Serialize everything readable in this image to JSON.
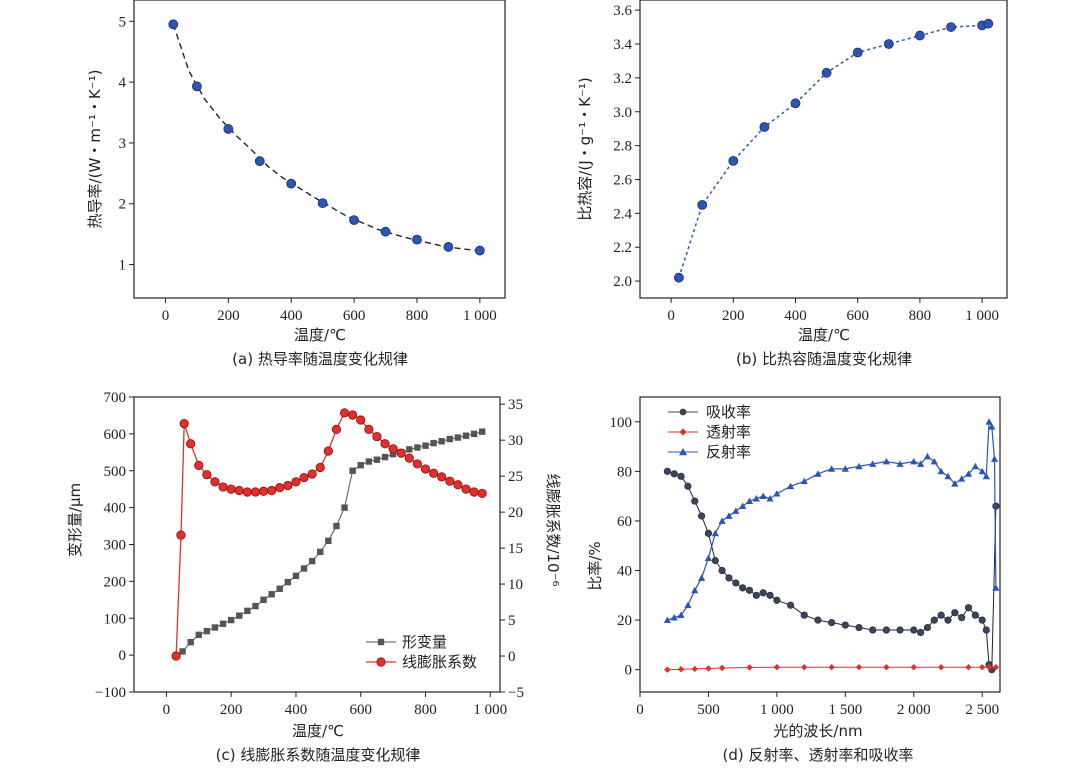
{
  "colors": {
    "blue": "#2d55b4",
    "red": "#e0302e",
    "gray": "#555555",
    "black": "#222222"
  },
  "chart_data": [
    {
      "id": "a",
      "type": "scatter",
      "caption": "(a) 热导率随温度变化规律",
      "xlabel": "温度/℃",
      "ylabel": "热导率/(W・m⁻¹・K⁻¹)",
      "xlim": [
        -100,
        1080
      ],
      "ylim": [
        0.45,
        5.35
      ],
      "xticks": [
        0,
        200,
        400,
        600,
        800,
        1000
      ],
      "xtick_labels": [
        "0",
        "200",
        "400",
        "600",
        "800",
        "1 000"
      ],
      "yticks": [
        1,
        2,
        3,
        4,
        5
      ],
      "ytick_labels": [
        "1",
        "2",
        "3",
        "4",
        "5"
      ],
      "series": [
        {
          "name": "热导率",
          "x": [
            25,
            100,
            200,
            300,
            400,
            500,
            600,
            700,
            800,
            900,
            1000
          ],
          "y": [
            4.95,
            3.93,
            3.23,
            2.7,
            2.33,
            2.01,
            1.73,
            1.54,
            1.41,
            1.29,
            1.23
          ]
        }
      ],
      "fit": {
        "style": "dashed",
        "x": [
          25,
          75,
          125,
          175,
          225,
          275,
          325,
          375,
          425,
          475,
          525,
          575,
          625,
          675,
          725,
          775,
          825,
          875,
          925,
          975,
          1000
        ],
        "y": [
          4.95,
          4.18,
          3.72,
          3.39,
          3.12,
          2.88,
          2.62,
          2.42,
          2.26,
          2.1,
          1.95,
          1.8,
          1.69,
          1.58,
          1.5,
          1.43,
          1.37,
          1.31,
          1.27,
          1.24,
          1.23
        ]
      }
    },
    {
      "id": "b",
      "type": "line",
      "caption": "(b) 比热容随温度变化规律",
      "xlabel": "温度/℃",
      "ylabel": "比热容/(J・g⁻¹・K⁻¹)",
      "xlim": [
        -100,
        1080
      ],
      "ylim": [
        1.9,
        3.66
      ],
      "xticks": [
        0,
        200,
        400,
        600,
        800,
        1000
      ],
      "xtick_labels": [
        "0",
        "200",
        "400",
        "600",
        "800",
        "1 000"
      ],
      "yticks": [
        2.0,
        2.2,
        2.4,
        2.6,
        2.8,
        3.0,
        3.2,
        3.4,
        3.6
      ],
      "ytick_labels": [
        "2.0",
        "2.2",
        "2.4",
        "2.6",
        "2.8",
        "3.0",
        "3.2",
        "3.4",
        "3.6"
      ],
      "series": [
        {
          "name": "比热容",
          "x": [
            25,
            100,
            200,
            300,
            400,
            500,
            600,
            700,
            800,
            900,
            1000,
            1020
          ],
          "y": [
            2.02,
            2.45,
            2.71,
            2.91,
            3.05,
            3.23,
            3.35,
            3.4,
            3.45,
            3.5,
            3.51,
            3.52
          ]
        }
      ]
    },
    {
      "id": "c",
      "type": "line",
      "caption": "(c) 线膨胀系数随温度变化规律",
      "xlabel": "温度/℃",
      "ylabel": "变形量/μm",
      "ylabel_right": "线膨胀系数/10⁻⁶",
      "xlim": [
        -100,
        1030
      ],
      "ylim": [
        -100,
        700
      ],
      "ylim_right": [
        -5,
        36
      ],
      "xticks": [
        0,
        200,
        400,
        600,
        800,
        1000
      ],
      "xtick_labels": [
        "0",
        "200",
        "400",
        "600",
        "800",
        "1 000"
      ],
      "yticks": [
        -100,
        0,
        100,
        200,
        300,
        400,
        500,
        600,
        700
      ],
      "ytick_labels": [
        "−100",
        "0",
        "100",
        "200",
        "300",
        "400",
        "500",
        "600",
        "700"
      ],
      "yticks_right": [
        -5,
        0,
        5,
        10,
        15,
        20,
        25,
        30,
        35
      ],
      "ytick_labels_right": [
        "−5",
        "0",
        "5",
        "10",
        "15",
        "20",
        "25",
        "30",
        "35"
      ],
      "legend": [
        "形变量",
        "线膨胀系数"
      ],
      "series": [
        {
          "name": "形变量",
          "axis": "left",
          "x": [
            50,
            75,
            100,
            125,
            150,
            175,
            200,
            225,
            250,
            275,
            300,
            325,
            350,
            375,
            400,
            425,
            450,
            475,
            500,
            525,
            550,
            575,
            600,
            625,
            650,
            675,
            700,
            725,
            750,
            775,
            800,
            825,
            850,
            875,
            900,
            925,
            950,
            975
          ],
          "y": [
            10,
            35,
            55,
            65,
            75,
            85,
            95,
            107,
            120,
            133,
            150,
            165,
            180,
            198,
            215,
            235,
            255,
            280,
            310,
            350,
            400,
            500,
            515,
            525,
            530,
            537,
            545,
            550,
            558,
            563,
            568,
            575,
            580,
            586,
            590,
            595,
            600,
            606
          ]
        },
        {
          "name": "线膨胀系数",
          "axis": "right",
          "x": [
            30,
            45,
            55,
            75,
            100,
            125,
            150,
            175,
            200,
            225,
            250,
            275,
            300,
            325,
            350,
            375,
            400,
            425,
            450,
            475,
            500,
            525,
            550,
            575,
            600,
            625,
            650,
            675,
            700,
            725,
            750,
            775,
            800,
            825,
            850,
            875,
            900,
            925,
            950,
            975
          ],
          "y": [
            0,
            16.8,
            32.3,
            29.5,
            26.5,
            25.2,
            24.2,
            23.5,
            23.2,
            23.0,
            22.8,
            22.8,
            22.9,
            23.0,
            23.4,
            23.7,
            24.2,
            24.8,
            25.3,
            26.2,
            28.5,
            31.5,
            33.8,
            33.5,
            32.8,
            31.5,
            30.5,
            29.5,
            28.8,
            28.2,
            27.5,
            26.7,
            26.0,
            25.4,
            24.9,
            24.3,
            23.8,
            23.2,
            22.8,
            22.6
          ]
        }
      ]
    },
    {
      "id": "d",
      "type": "line",
      "caption": "(d) 反射率、透射率和吸收率",
      "xlabel": "光的波长/nm",
      "ylabel": "比率/%",
      "xlim": [
        0,
        2630
      ],
      "ylim": [
        -9,
        110
      ],
      "xticks": [
        0,
        500,
        1000,
        1500,
        2000,
        2500
      ],
      "xtick_labels": [
        "0",
        "500",
        "1 000",
        "1 500",
        "2 000",
        "2 500"
      ],
      "yticks": [
        0,
        20,
        40,
        60,
        80,
        100
      ],
      "ytick_labels": [
        "0",
        "20",
        "40",
        "60",
        "80",
        "100"
      ],
      "legend": [
        "吸收率",
        "透射率",
        "反射率"
      ],
      "series": [
        {
          "name": "吸收率",
          "x": [
            200,
            250,
            300,
            350,
            400,
            450,
            500,
            550,
            600,
            650,
            700,
            750,
            800,
            850,
            900,
            950,
            1000,
            1100,
            1200,
            1300,
            1400,
            1500,
            1600,
            1700,
            1800,
            1900,
            2000,
            2050,
            2100,
            2150,
            2200,
            2250,
            2300,
            2350,
            2400,
            2450,
            2500,
            2530,
            2550,
            2570,
            2600
          ],
          "y": [
            80,
            79,
            78,
            74,
            68,
            62,
            55,
            44,
            40,
            37,
            35,
            33,
            32,
            30,
            31,
            30,
            28,
            26,
            22,
            20,
            19,
            18,
            17,
            16,
            16,
            16,
            16,
            15,
            17,
            20,
            22,
            20,
            23,
            21,
            25,
            22,
            20,
            16,
            2,
            0,
            66
          ]
        },
        {
          "name": "透射率",
          "x": [
            200,
            300,
            400,
            500,
            600,
            800,
            1000,
            1200,
            1400,
            1600,
            1800,
            2000,
            2200,
            2400,
            2500,
            2550,
            2600
          ],
          "y": [
            0,
            0.2,
            0.3,
            0.5,
            0.7,
            0.9,
            1,
            1,
            1,
            1,
            1,
            1,
            1,
            1,
            1,
            1,
            1
          ]
        },
        {
          "name": "反射率",
          "x": [
            200,
            250,
            300,
            350,
            400,
            450,
            500,
            550,
            600,
            650,
            700,
            750,
            800,
            850,
            900,
            950,
            1000,
            1100,
            1200,
            1300,
            1400,
            1500,
            1600,
            1700,
            1800,
            1900,
            2000,
            2050,
            2100,
            2150,
            2200,
            2250,
            2300,
            2350,
            2400,
            2450,
            2500,
            2530,
            2550,
            2570,
            2590,
            2600
          ],
          "y": [
            20,
            21,
            22,
            26,
            32,
            37,
            45,
            55,
            60,
            62,
            64,
            66,
            68,
            69,
            70,
            69,
            71,
            74,
            76,
            79,
            81,
            81,
            82,
            83,
            84,
            83,
            84,
            83,
            86,
            84,
            80,
            78,
            75,
            77,
            79,
            82,
            80,
            78,
            100,
            98,
            85,
            33
          ]
        }
      ]
    }
  ]
}
